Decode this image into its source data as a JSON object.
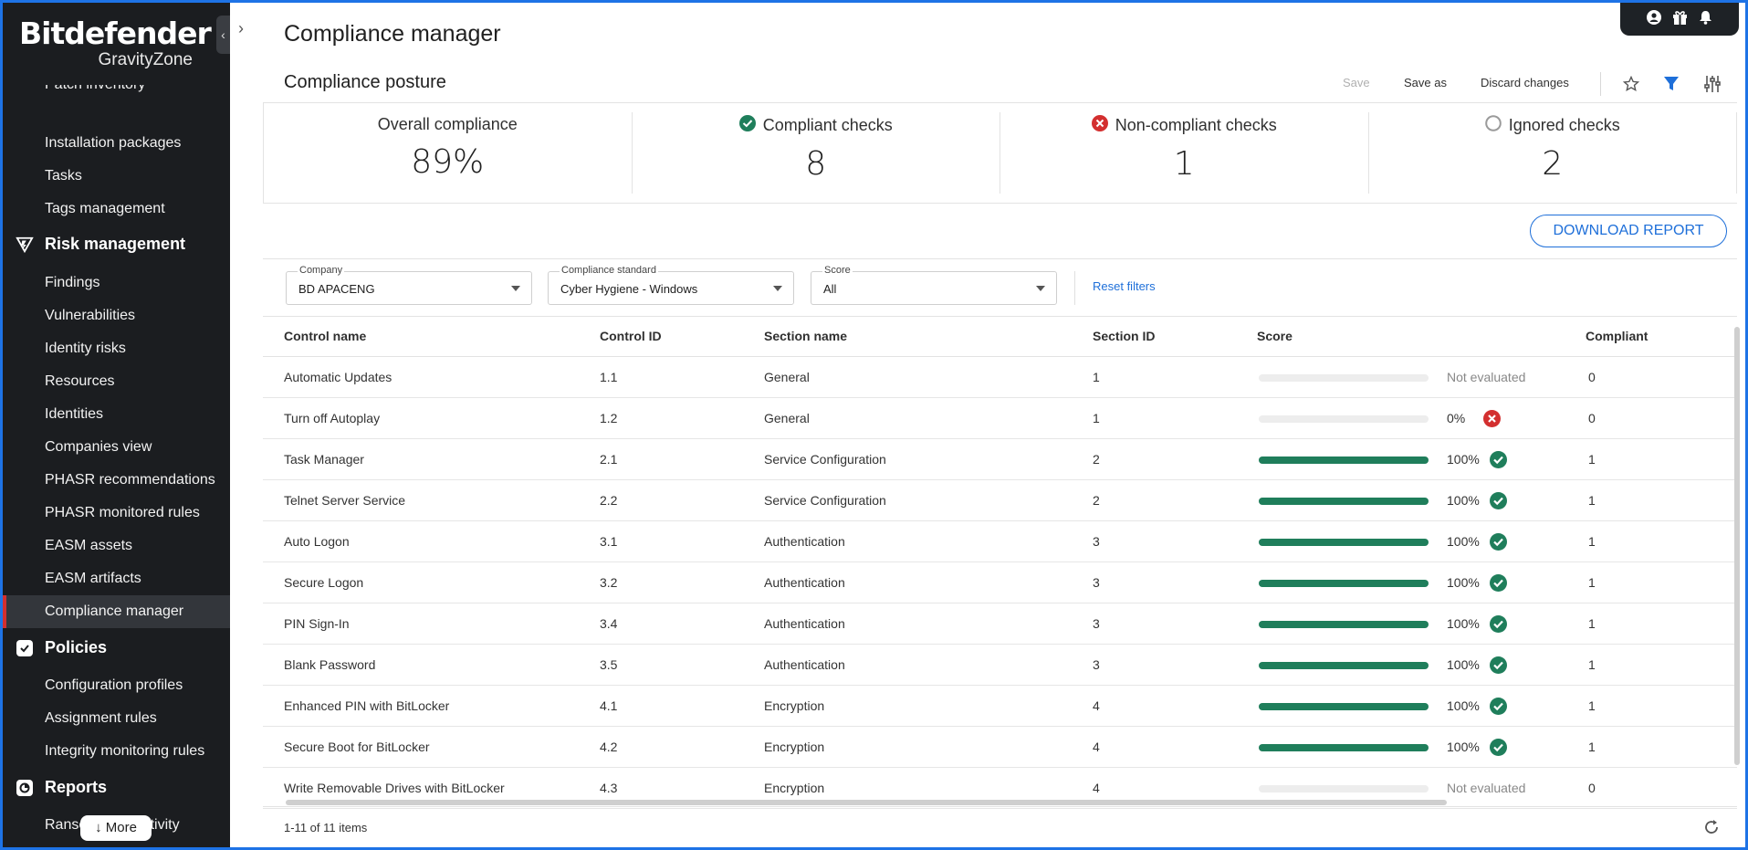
{
  "brand": {
    "name": "Bitdefender",
    "sub": "GravityZone"
  },
  "sidebar": {
    "partial_item": "Patch inventory",
    "items_top": [
      "Installation packages",
      "Tasks",
      "Tags management"
    ],
    "risk_section": "Risk management",
    "risk_items": [
      "Findings",
      "Vulnerabilities",
      "Identity risks",
      "Resources",
      "Identities",
      "Companies view",
      "PHASR recommendations",
      "PHASR monitored rules",
      "EASM assets",
      "EASM artifacts",
      "Compliance manager"
    ],
    "policies_section": "Policies",
    "policies_items": [
      "Configuration profiles",
      "Assignment rules",
      "Integrity monitoring rules"
    ],
    "reports_section": "Reports",
    "reports_items": [
      "Ransomware activity"
    ],
    "more_label": "More"
  },
  "page": {
    "title": "Compliance manager",
    "subtitle": "Compliance posture"
  },
  "actions": {
    "save": "Save",
    "save_as": "Save as",
    "discard": "Discard changes"
  },
  "summary": {
    "overall_label": "Overall compliance",
    "overall_value": "89%",
    "compliant_label": "Compliant checks",
    "compliant_value": "8",
    "noncompliant_label": "Non-compliant checks",
    "noncompliant_value": "1",
    "ignored_label": "Ignored checks",
    "ignored_value": "2"
  },
  "download_label": "DOWNLOAD REPORT",
  "filters": {
    "company_label": "Company",
    "company_value": "BD APACENG",
    "standard_label": "Compliance standard",
    "standard_value": "Cyber Hygiene - Windows",
    "score_label": "Score",
    "score_value": "All",
    "reset_label": "Reset filters"
  },
  "table": {
    "headers": [
      "Control name",
      "Control ID",
      "Section name",
      "Section ID",
      "Score",
      "Compliant"
    ],
    "rows": [
      {
        "name": "Automatic Updates",
        "id": "1.1",
        "section": "General",
        "section_id": "1",
        "score": "Not evaluated",
        "score_pct": 0,
        "status": "none",
        "compliant": "0"
      },
      {
        "name": "Turn off Autoplay",
        "id": "1.2",
        "section": "General",
        "section_id": "1",
        "score": "0%",
        "score_pct": 0,
        "status": "fail",
        "compliant": "0"
      },
      {
        "name": "Task Manager",
        "id": "2.1",
        "section": "Service Configuration",
        "section_id": "2",
        "score": "100%",
        "score_pct": 100,
        "status": "pass",
        "compliant": "1"
      },
      {
        "name": "Telnet Server Service",
        "id": "2.2",
        "section": "Service Configuration",
        "section_id": "2",
        "score": "100%",
        "score_pct": 100,
        "status": "pass",
        "compliant": "1"
      },
      {
        "name": "Auto Logon",
        "id": "3.1",
        "section": "Authentication",
        "section_id": "3",
        "score": "100%",
        "score_pct": 100,
        "status": "pass",
        "compliant": "1"
      },
      {
        "name": "Secure Logon",
        "id": "3.2",
        "section": "Authentication",
        "section_id": "3",
        "score": "100%",
        "score_pct": 100,
        "status": "pass",
        "compliant": "1"
      },
      {
        "name": "PIN Sign-In",
        "id": "3.4",
        "section": "Authentication",
        "section_id": "3",
        "score": "100%",
        "score_pct": 100,
        "status": "pass",
        "compliant": "1"
      },
      {
        "name": "Blank Password",
        "id": "3.5",
        "section": "Authentication",
        "section_id": "3",
        "score": "100%",
        "score_pct": 100,
        "status": "pass",
        "compliant": "1"
      },
      {
        "name": "Enhanced PIN with BitLocker",
        "id": "4.1",
        "section": "Encryption",
        "section_id": "4",
        "score": "100%",
        "score_pct": 100,
        "status": "pass",
        "compliant": "1"
      },
      {
        "name": "Secure Boot for BitLocker",
        "id": "4.2",
        "section": "Encryption",
        "section_id": "4",
        "score": "100%",
        "score_pct": 100,
        "status": "pass",
        "compliant": "1"
      },
      {
        "name": "Write Removable Drives with BitLocker",
        "id": "4.3",
        "section": "Encryption",
        "section_id": "4",
        "score": "Not evaluated",
        "score_pct": 0,
        "status": "none",
        "compliant": "0"
      }
    ]
  },
  "footer": {
    "count": "1-11 of 11 items"
  },
  "colors": {
    "accent": "#1e6fd9",
    "pass": "#1f7e5b",
    "fail": "#d32f2f",
    "sidebar": "#1b1d20"
  }
}
